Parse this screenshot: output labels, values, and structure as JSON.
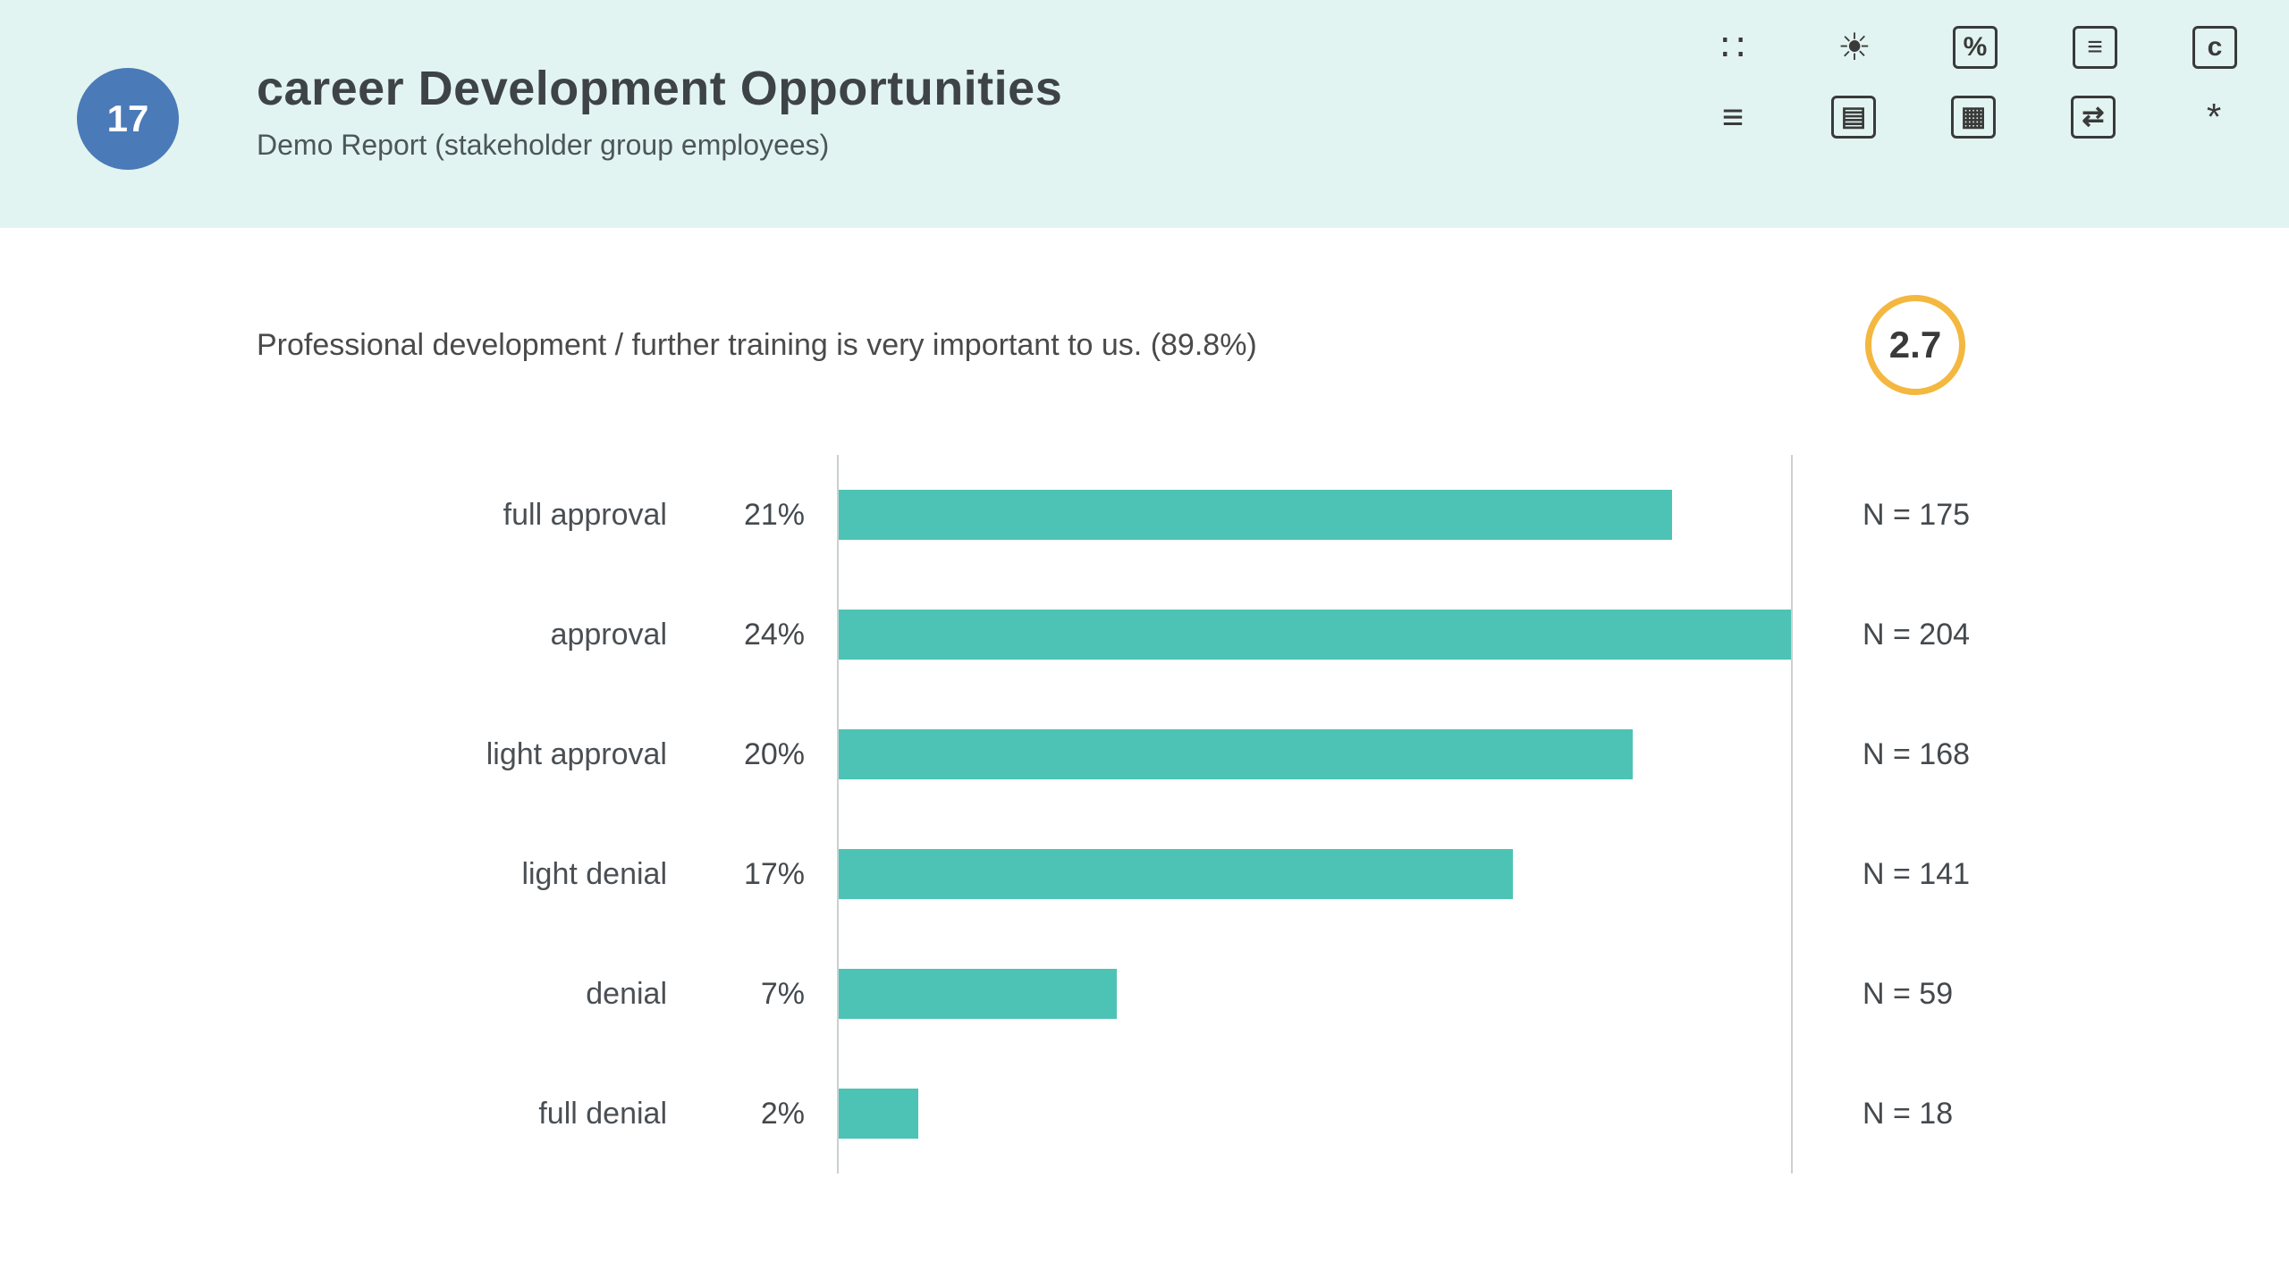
{
  "header": {
    "slide_number": "17",
    "title": "career Development Opportunities",
    "subtitle": "Demo Report (stakeholder group employees)",
    "badge_color": "#4a7ab8",
    "background_color": "#e2f4f1"
  },
  "toolbar": {
    "rows": [
      [
        {
          "name": "dashboard-icon",
          "glyph": "∷",
          "boxed": false
        },
        {
          "name": "sun-icon",
          "glyph": "☀",
          "boxed": false
        },
        {
          "name": "percent-icon",
          "glyph": "%",
          "boxed": true
        },
        {
          "name": "list-box-icon",
          "glyph": "≡",
          "boxed": true
        },
        {
          "name": "c-icon",
          "glyph": "c",
          "boxed": true
        }
      ],
      [
        {
          "name": "align-left-icon",
          "glyph": "≡",
          "boxed": false
        },
        {
          "name": "document-icon",
          "glyph": "▤",
          "boxed": true
        },
        {
          "name": "table-icon",
          "glyph": "▦",
          "boxed": true
        },
        {
          "name": "export-icon",
          "glyph": "⇄",
          "boxed": true
        },
        {
          "name": "asterisk-icon",
          "glyph": "*",
          "boxed": false
        }
      ]
    ]
  },
  "question": {
    "text": "Professional development / further training is very important to us. (89.8%)",
    "score": "2.7",
    "score_ring_color": "#f4b73f"
  },
  "chart_data": {
    "type": "bar",
    "orientation": "horizontal",
    "title": "",
    "xlabel": "",
    "ylabel": "",
    "categories": [
      "full approval",
      "approval",
      "light approval",
      "light denial",
      "denial",
      "full denial"
    ],
    "values": [
      21,
      24,
      20,
      17,
      7,
      2
    ],
    "value_labels": [
      "21%",
      "24%",
      "20%",
      "17%",
      "7%",
      "2%"
    ],
    "n_labels": [
      "N = 175",
      "N = 204",
      "N = 168",
      "N = 141",
      "N = 59",
      "N = 18"
    ],
    "xlim": [
      0,
      24
    ],
    "bar_color": "#4dc3b5",
    "grid": false,
    "legend": false
  }
}
